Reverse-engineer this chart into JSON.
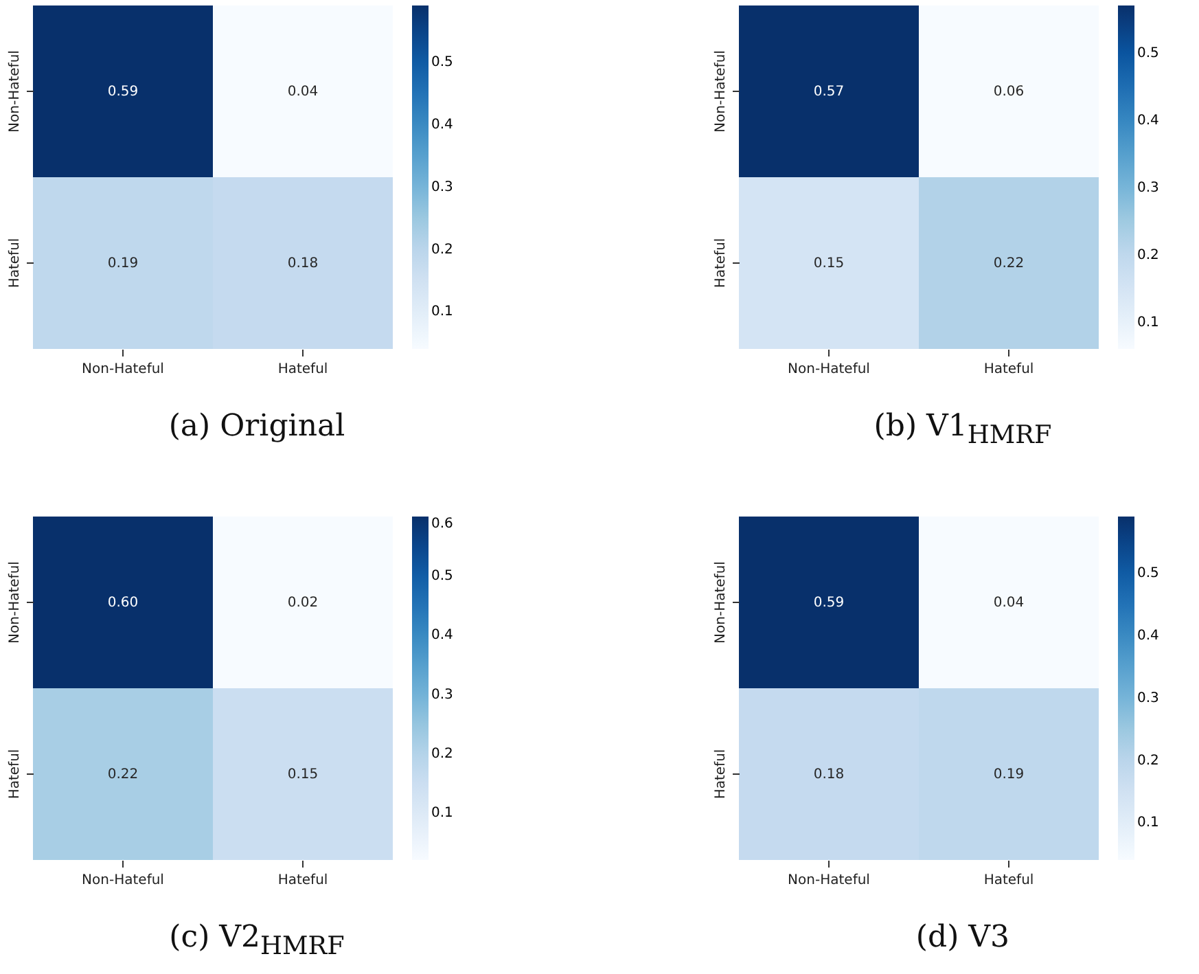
{
  "chart_data": [
    {
      "type": "heatmap",
      "title": "(a) Original",
      "categories": [
        "Non-Hateful",
        "Hateful"
      ],
      "y_categories": [
        "Non-Hateful",
        "Hateful"
      ],
      "cells": [
        [
          0.59,
          0.04
        ],
        [
          0.19,
          0.18
        ]
      ],
      "cell_labels": [
        [
          "0.59",
          "0.04"
        ],
        [
          "0.19",
          "0.18"
        ]
      ],
      "clim": [
        0.04,
        0.59
      ],
      "cticks": [
        0.1,
        0.2,
        0.3,
        0.4,
        0.5
      ]
    },
    {
      "type": "heatmap",
      "title": "(b) V1$_{HMRF}$",
      "categories": [
        "Non-Hateful",
        "Hateful"
      ],
      "y_categories": [
        "Non-Hateful",
        "Hateful"
      ],
      "cells": [
        [
          0.57,
          0.06
        ],
        [
          0.15,
          0.22
        ]
      ],
      "cell_labels": [
        [
          "0.57",
          "0.06"
        ],
        [
          "0.15",
          "0.22"
        ]
      ],
      "clim": [
        0.06,
        0.57
      ],
      "cticks": [
        0.1,
        0.2,
        0.3,
        0.4,
        0.5
      ]
    },
    {
      "type": "heatmap",
      "title": "(c) V2$_{HMRF}$",
      "categories": [
        "Non-Hateful",
        "Hateful"
      ],
      "y_categories": [
        "Non-Hateful",
        "Hateful"
      ],
      "cells": [
        [
          0.6,
          0.02
        ],
        [
          0.22,
          0.15
        ]
      ],
      "cell_labels": [
        [
          "0.60",
          "0.02"
        ],
        [
          "0.22",
          "0.15"
        ]
      ],
      "clim": [
        0.02,
        0.6
      ],
      "cticks": [
        0.1,
        0.2,
        0.3,
        0.4,
        0.5,
        0.6
      ]
    },
    {
      "type": "heatmap",
      "title": "(d) V3",
      "categories": [
        "Non-Hateful",
        "Hateful"
      ],
      "y_categories": [
        "Non-Hateful",
        "Hateful"
      ],
      "cells": [
        [
          0.59,
          0.04
        ],
        [
          0.18,
          0.19
        ]
      ],
      "cell_labels": [
        [
          "0.59",
          "0.04"
        ],
        [
          "0.18",
          "0.19"
        ]
      ],
      "clim": [
        0.04,
        0.59
      ],
      "cticks": [
        0.1,
        0.2,
        0.3,
        0.4,
        0.5
      ]
    }
  ]
}
